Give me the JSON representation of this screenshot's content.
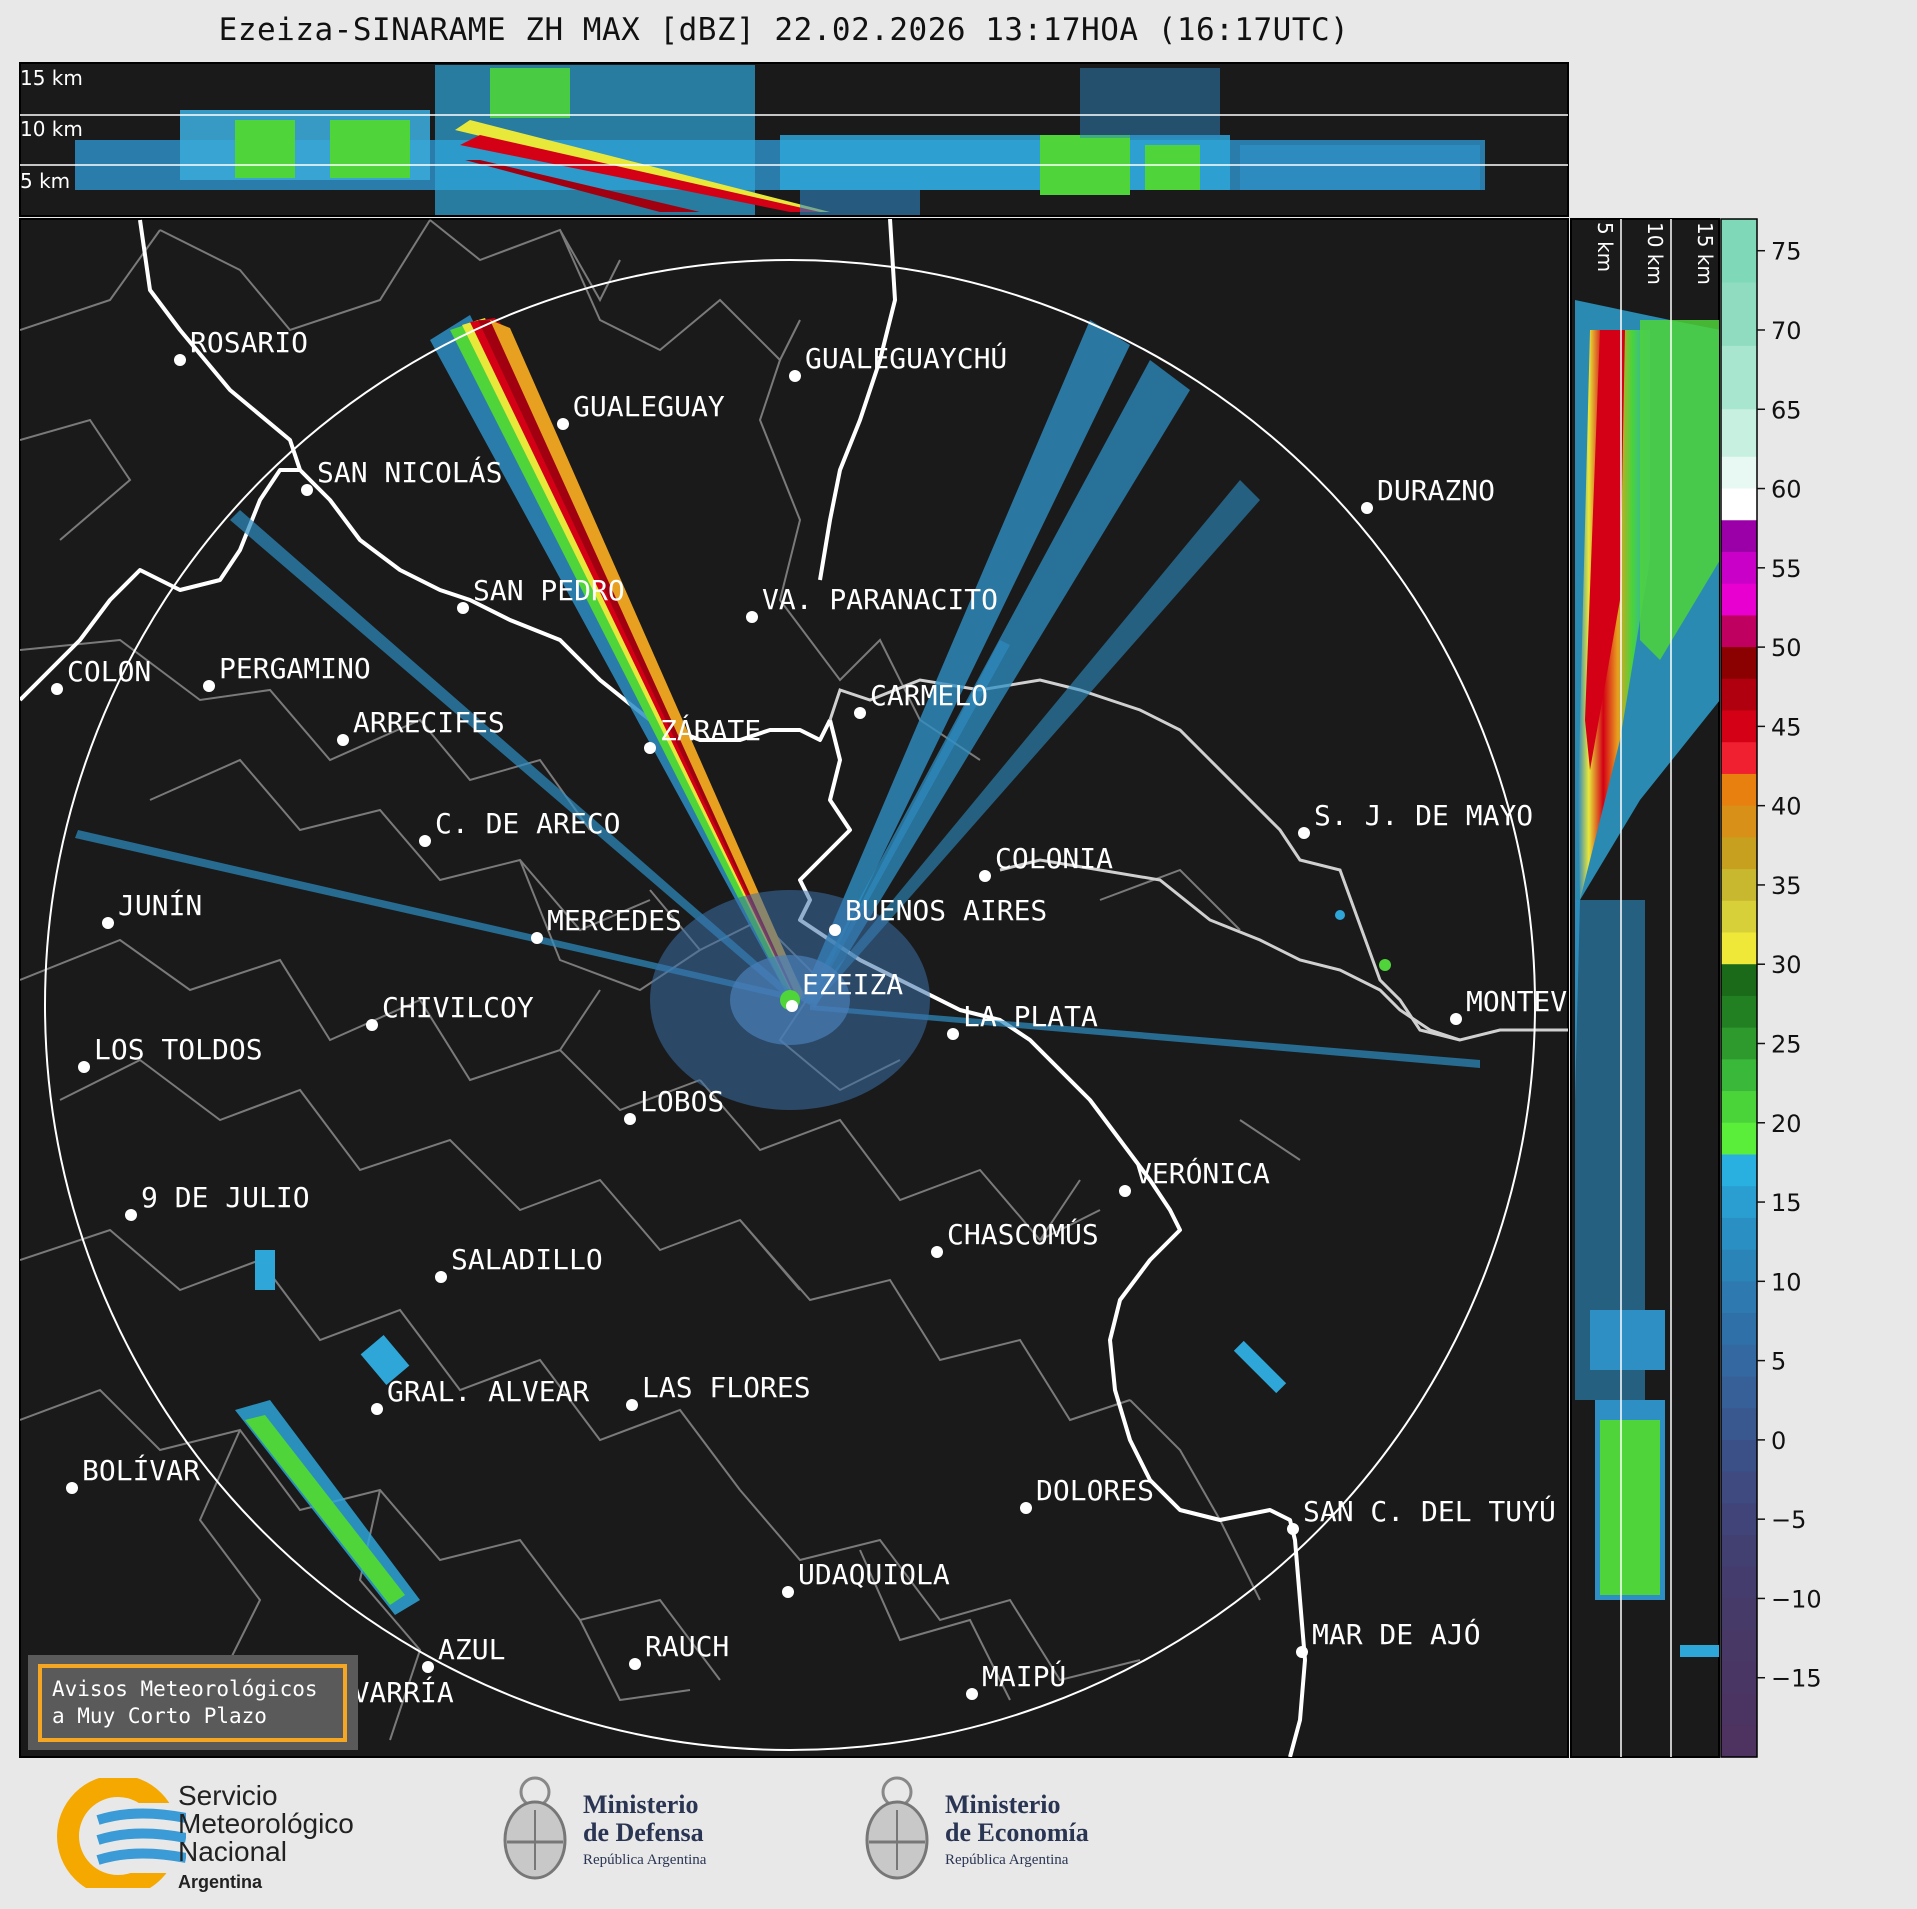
{
  "title": "Ezeiza-SINARAME ZH MAX [dBZ] 22.02.2026 13:17HOA (16:17UTC)",
  "top_panel": {
    "km_labels": [
      "15 km",
      "10 km",
      "5 km"
    ]
  },
  "side_panel": {
    "km_labels": [
      "5 km",
      "10 km",
      "15 km"
    ]
  },
  "colorbar": {
    "unit": "dBZ",
    "ticks": [
      "75",
      "70",
      "65",
      "60",
      "55",
      "50",
      "45",
      "40",
      "35",
      "30",
      "25",
      "20",
      "15",
      "10",
      "5",
      "0",
      "−5",
      "−10",
      "−15"
    ],
    "range": [
      -20,
      77
    ]
  },
  "cities": [
    {
      "name": "ROSARIO"
    },
    {
      "name": "GUALEGUAYCHÚ"
    },
    {
      "name": "GUALEGUAY"
    },
    {
      "name": "SAN NICOLÁS"
    },
    {
      "name": "DURAZNO"
    },
    {
      "name": "SAN PEDRO"
    },
    {
      "name": "VA. PARANACITO"
    },
    {
      "name": "COLON"
    },
    {
      "name": "PERGAMINO"
    },
    {
      "name": "CARMELO"
    },
    {
      "name": "ARRECIFES"
    },
    {
      "name": "ZÁRATE"
    },
    {
      "name": "S. J. DE MAYO"
    },
    {
      "name": "C. DE ARECO"
    },
    {
      "name": "COLONIA"
    },
    {
      "name": "JUNÍN"
    },
    {
      "name": "MERCEDES"
    },
    {
      "name": "BUENOS AIRES"
    },
    {
      "name": "EZEIZA"
    },
    {
      "name": "MONTEVIDEO"
    },
    {
      "name": "CHIVILCOY"
    },
    {
      "name": "LA PLATA"
    },
    {
      "name": "LOS TOLDOS"
    },
    {
      "name": "LOBOS"
    },
    {
      "name": "VERÓNICA"
    },
    {
      "name": "9 DE JULIO"
    },
    {
      "name": "CHASCOMÚS"
    },
    {
      "name": "SALADILLO"
    },
    {
      "name": "GRAL. ALVEAR"
    },
    {
      "name": "LAS FLORES"
    },
    {
      "name": "BOLÍVAR"
    },
    {
      "name": "DOLORES"
    },
    {
      "name": "SAN C. DEL TUYÚ"
    },
    {
      "name": "UDAQUIOLA"
    },
    {
      "name": "AZUL"
    },
    {
      "name": "RAUCH"
    },
    {
      "name": "MAR DE AJÓ"
    },
    {
      "name": "OLAVARRÍA"
    },
    {
      "name": "MAIPÚ"
    }
  ],
  "warning_box": {
    "line1": "Avisos Meteorológicos",
    "line2": "a Muy Corto Plazo"
  },
  "logos": {
    "smn": {
      "line1": "Servicio",
      "line2": "Meteorológico",
      "line3": "Nacional",
      "line4": "Argentina"
    },
    "defensa": {
      "line1": "Ministerio",
      "line2": "de Defensa",
      "line3": "República Argentina"
    },
    "economia": {
      "line1": "Ministerio",
      "line2": "de Economía",
      "line3": "República Argentina"
    }
  },
  "colors": {
    "background": "#1a1a1a",
    "ring": "#ffffff",
    "coast": "#ffffff",
    "borders": "#7a7a7a",
    "warning_border": "#f5a623"
  }
}
